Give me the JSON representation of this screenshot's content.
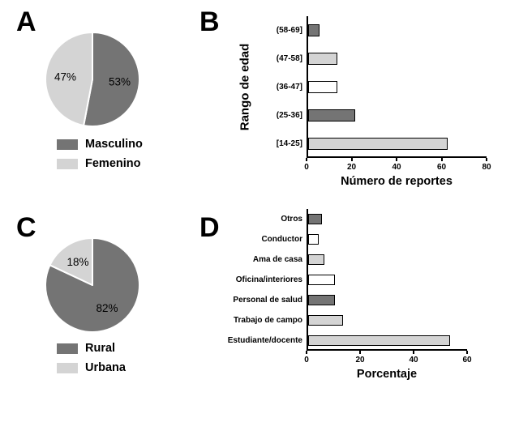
{
  "panels": {
    "a": {
      "letter": "A"
    },
    "b": {
      "letter": "B"
    },
    "c": {
      "letter": "C"
    },
    "d": {
      "letter": "D"
    }
  },
  "colors": {
    "dark_gray": "#747474",
    "light_gray": "#d4d4d4",
    "white": "#ffffff",
    "axis": "#000000",
    "background": "#ffffff"
  },
  "chart_data": [
    {
      "id": "pie_a",
      "type": "pie",
      "slices": [
        {
          "label": "Masculino",
          "value": 53,
          "display": "53%",
          "color": "dark_gray"
        },
        {
          "label": "Femenino",
          "value": 47,
          "display": "47%",
          "color": "light_gray"
        }
      ],
      "legend": [
        {
          "label": "Masculino",
          "color": "dark_gray"
        },
        {
          "label": "Femenino",
          "color": "light_gray"
        }
      ],
      "legend_position": "bottom"
    },
    {
      "id": "bar_b",
      "type": "bar",
      "orientation": "horizontal",
      "categories": [
        "(58-69]",
        "(47-58]",
        "(36-47]",
        "(25-36]",
        "[14-25]"
      ],
      "values": [
        5,
        13,
        13,
        21,
        62
      ],
      "bar_colors": [
        "dark_gray",
        "light_gray",
        "white",
        "dark_gray",
        "light_gray"
      ],
      "xlabel": "Número de reportes",
      "ylabel": "Rango de edad",
      "xlim": [
        0,
        80
      ],
      "xticks": [
        0,
        20,
        40,
        60,
        80
      ],
      "grid": false
    },
    {
      "id": "pie_c",
      "type": "pie",
      "slices": [
        {
          "label": "Rural",
          "value": 82,
          "display": "82%",
          "color": "dark_gray"
        },
        {
          "label": "Urbana",
          "value": 18,
          "display": "18%",
          "color": "light_gray"
        }
      ],
      "legend": [
        {
          "label": "Rural",
          "color": "dark_gray"
        },
        {
          "label": "Urbana",
          "color": "light_gray"
        }
      ],
      "legend_position": "bottom"
    },
    {
      "id": "bar_d",
      "type": "bar",
      "orientation": "horizontal",
      "categories": [
        "Otros",
        "Conductor",
        "Ama de casa",
        "Oficina/interiores",
        "Personal de salud",
        "Trabajo de campo",
        "Estudiante/docente"
      ],
      "values": [
        5,
        4,
        6,
        10,
        10,
        13,
        53
      ],
      "bar_colors": [
        "dark_gray",
        "white",
        "light_gray",
        "white",
        "dark_gray",
        "light_gray",
        "light_gray"
      ],
      "xlabel": "Porcentaje",
      "ylabel": "",
      "xlim": [
        0,
        60
      ],
      "xticks": [
        0,
        20,
        40,
        60
      ],
      "grid": false
    }
  ]
}
